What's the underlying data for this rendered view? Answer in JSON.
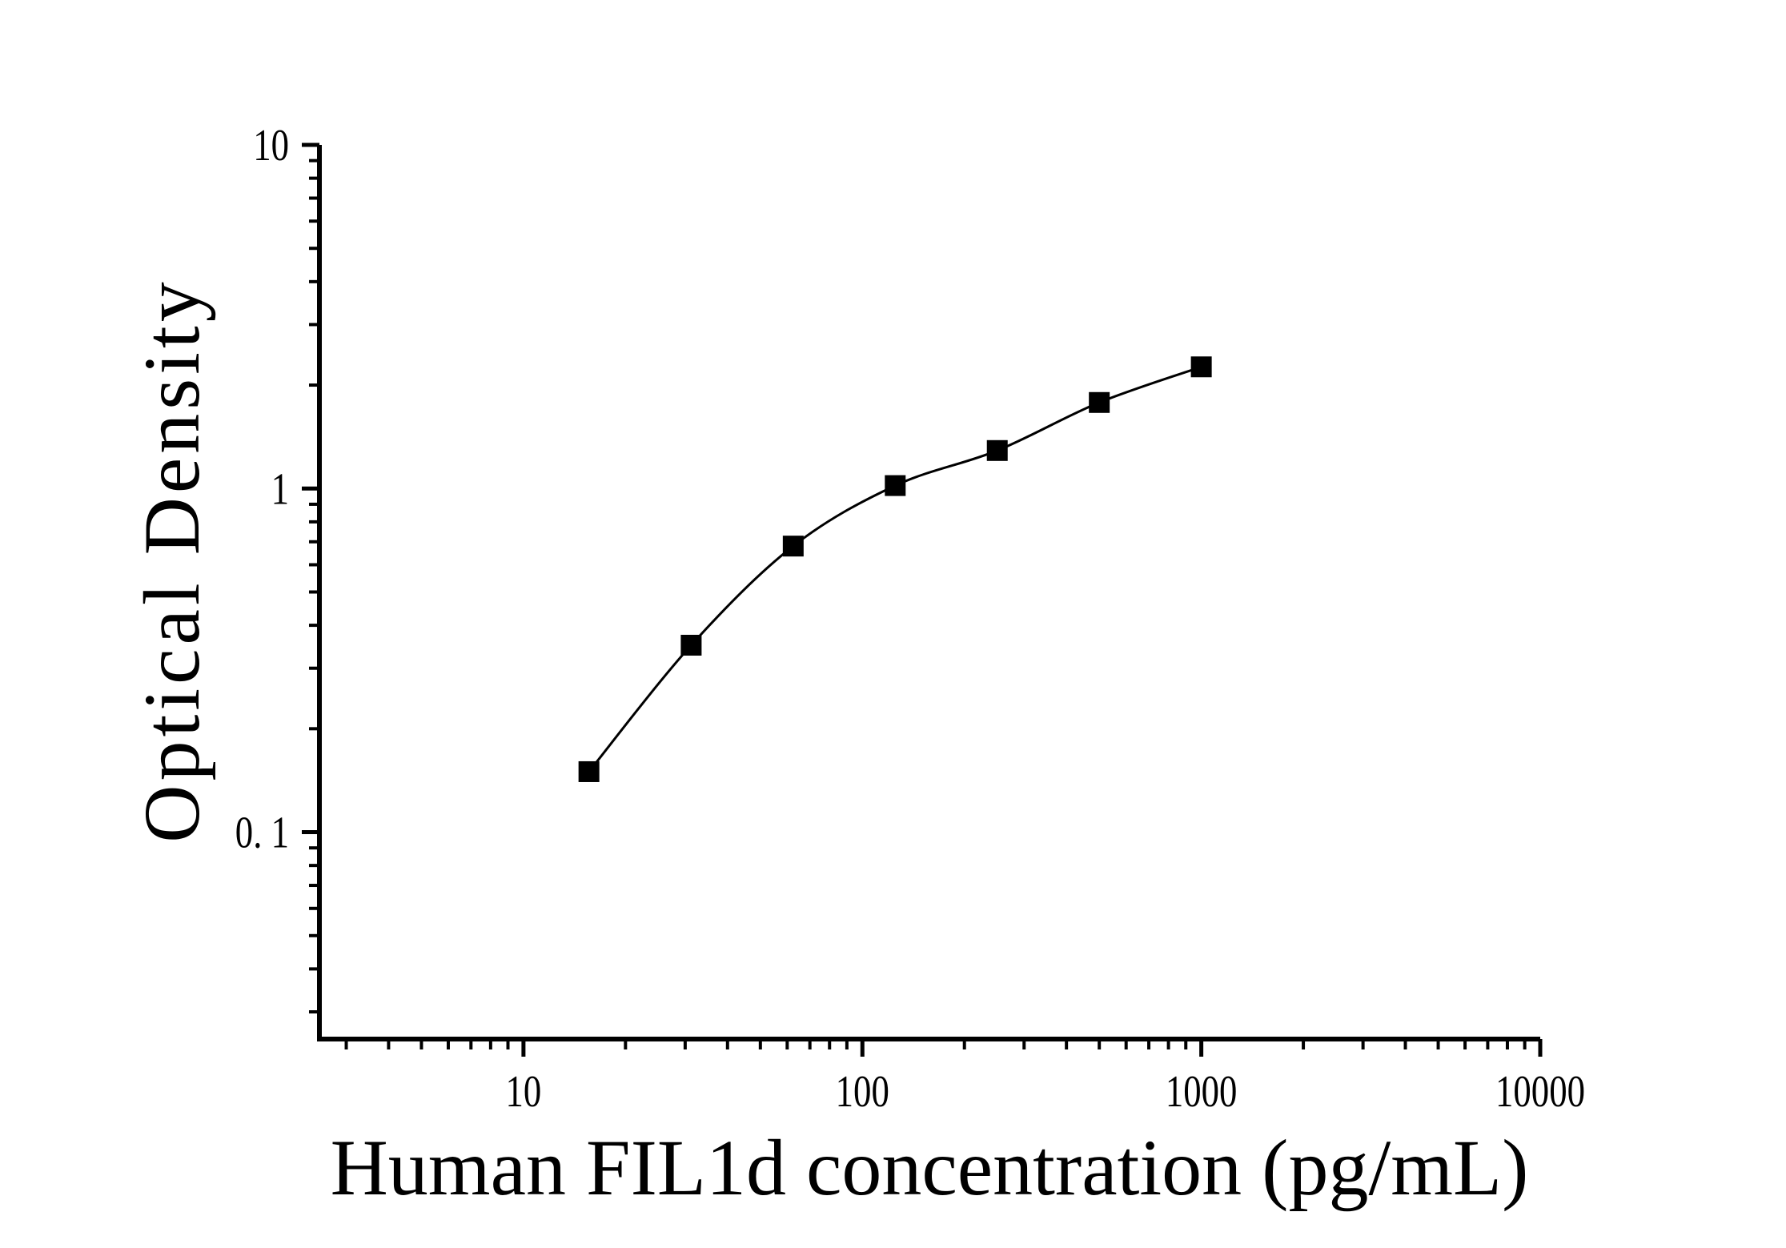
{
  "figure": {
    "background_color": "#ffffff",
    "ink_color": "#000000"
  },
  "chart_data": {
    "type": "scatter",
    "title": "",
    "xlabel": "Human FIL1d concentration (pg/mL)",
    "ylabel": "Optical Density",
    "x_scale": "log",
    "y_scale": "log",
    "xlim": [
      2.5,
      10000
    ],
    "ylim": [
      0.025,
      10
    ],
    "x_major_ticks": [
      10,
      100,
      1000,
      10000
    ],
    "x_tick_labels": [
      "10",
      "100",
      "1000",
      "10000"
    ],
    "y_major_ticks": [
      10,
      1,
      0.1
    ],
    "y_tick_labels": [
      "10",
      "1",
      "0. 1"
    ],
    "grid": false,
    "legend": null,
    "marker": "filled-square",
    "marker_size_px": 26,
    "marker_color": "#000000",
    "line_color": "#000000",
    "fit_line": true,
    "series": [
      {
        "name": "standard-curve",
        "x": [
          15.6,
          31.25,
          62.5,
          125,
          250,
          500,
          1000
        ],
        "y": [
          0.15,
          0.35,
          0.68,
          1.02,
          1.29,
          1.78,
          2.26
        ]
      }
    ]
  }
}
